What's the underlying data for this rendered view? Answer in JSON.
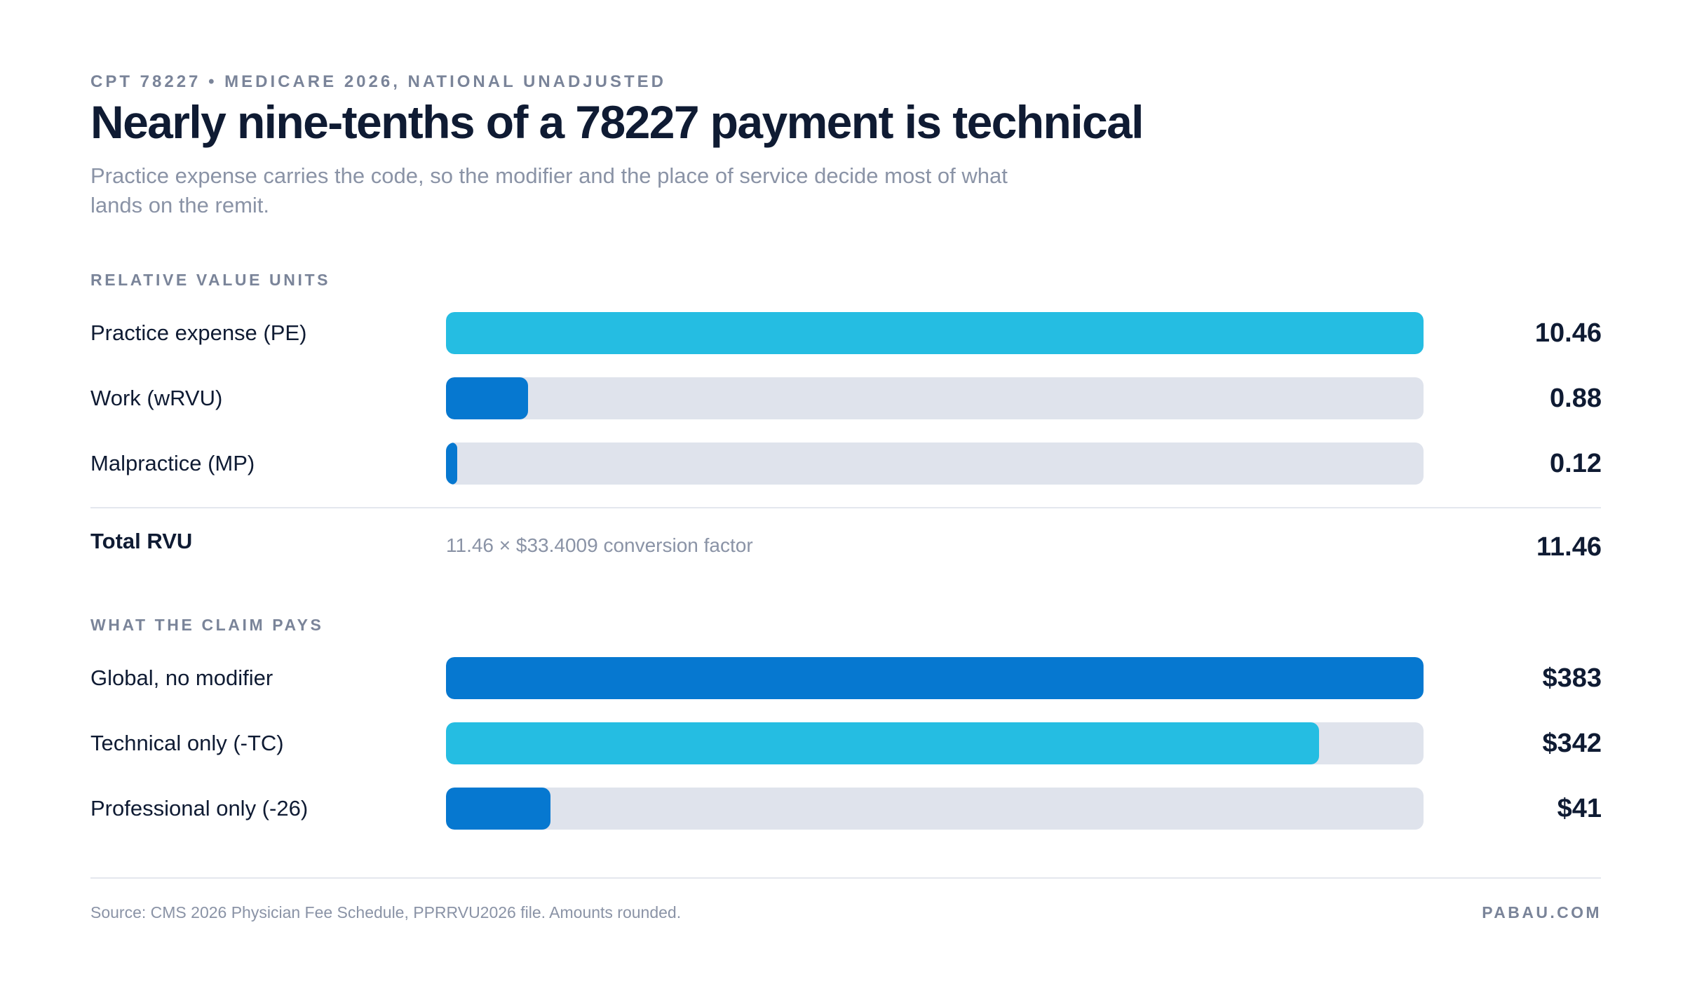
{
  "eyebrow": "CPT 78227 • MEDICARE 2026, NATIONAL UNADJUSTED",
  "title": "Nearly nine-tenths of a 78227 payment is technical",
  "subtitle": "Practice expense carries the code, so the modifier and the place of service decide most of what lands on the remit.",
  "colors": {
    "cyan": "#25bde2",
    "blue": "#0678d0",
    "track": "#dfe3ec"
  },
  "chart_data": [
    {
      "type": "bar",
      "section_label": "RELATIVE VALUE UNITS",
      "categories": [
        "Practice expense (PE)",
        "Work (wRVU)",
        "Malpractice (MP)"
      ],
      "values": [
        10.46,
        0.88,
        0.12
      ],
      "value_labels": [
        "10.46",
        "0.88",
        "0.12"
      ],
      "bar_colors": [
        "#25bde2",
        "#0678d0",
        "#0678d0"
      ],
      "xlim": [
        0,
        10.46
      ]
    },
    {
      "type": "bar",
      "section_label": "WHAT THE CLAIM PAYS",
      "categories": [
        "Global, no modifier",
        "Technical only (-TC)",
        "Professional only (-26)"
      ],
      "values": [
        383,
        342,
        41
      ],
      "value_labels": [
        "$383",
        "$342",
        "$41"
      ],
      "bar_colors": [
        "#0678d0",
        "#25bde2",
        "#0678d0"
      ],
      "xlim": [
        0,
        383
      ]
    }
  ],
  "total": {
    "label": "Total RVU",
    "note": "11.46 × $33.4009 conversion factor",
    "value": "11.46"
  },
  "footer": {
    "source": "Source: CMS 2026 Physician Fee Schedule, PPRRVU2026 file. Amounts rounded.",
    "brand": "PABAU.COM"
  }
}
